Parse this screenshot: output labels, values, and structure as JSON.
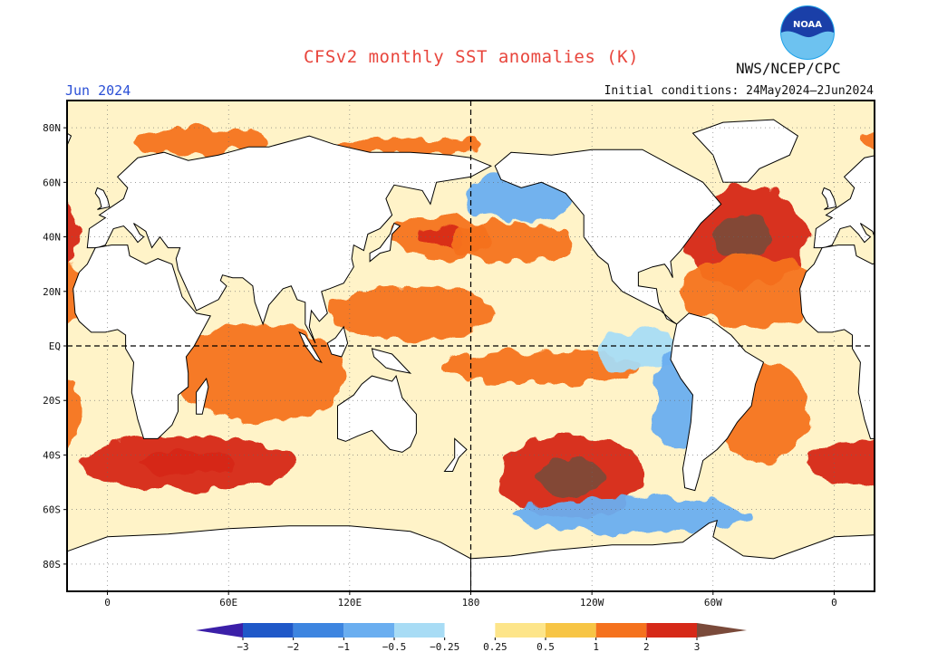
{
  "title": "CFSv2 monthly SST anomalies (K)",
  "organization": "NWS/NCEP/CPC",
  "logo_text": "NOAA",
  "forecast_month": "Jun 2024",
  "initial_conditions": "Initial conditions: 24May2024–2Jun2024",
  "map": {
    "projection": "equirectangular",
    "lon_range": [
      -20,
      380
    ],
    "lat_range": [
      -90,
      90
    ],
    "lat_ticks": [
      {
        "value": 80,
        "label": "80N"
      },
      {
        "value": 60,
        "label": "60N"
      },
      {
        "value": 40,
        "label": "40N"
      },
      {
        "value": 20,
        "label": "20N"
      },
      {
        "value": 0,
        "label": "EQ"
      },
      {
        "value": -20,
        "label": "20S"
      },
      {
        "value": -40,
        "label": "40S"
      },
      {
        "value": -60,
        "label": "60S"
      },
      {
        "value": -80,
        "label": "80S"
      }
    ],
    "lon_ticks": [
      {
        "value": 0,
        "label": "0"
      },
      {
        "value": 60,
        "label": "60E"
      },
      {
        "value": 120,
        "label": "120E"
      },
      {
        "value": 180,
        "label": "180"
      },
      {
        "value": 240,
        "label": "120W"
      },
      {
        "value": 300,
        "label": "60W"
      },
      {
        "value": 360,
        "label": "0"
      }
    ],
    "dashed_lines": [
      "Equator",
      "180 meridian"
    ]
  },
  "colorbar": {
    "levels": [
      -3,
      -2,
      -1,
      -0.5,
      -0.25,
      0.25,
      0.5,
      1,
      2,
      3
    ],
    "labels": [
      "−3",
      "−2",
      "−1",
      "−0.5",
      "−0.25",
      "0.25",
      "0.5",
      "1",
      "2",
      "3"
    ],
    "colors": {
      "below_min": "#3b1fa8",
      "bins": [
        "#1f58c8",
        "#3d85e0",
        "#6aaef0",
        "#a8dcf5",
        "#ffffff",
        "#fde58a",
        "#f7c545",
        "#f5721e",
        "#d62918",
        "#a00f10"
      ],
      "above_max": "#7a4a3a"
    }
  },
  "anomaly_regions": [
    {
      "name": "North Atlantic",
      "lon": 315,
      "lat": 40,
      "value": 2.2
    },
    {
      "name": "Subtropical North Atlantic",
      "lon": 320,
      "lat": 20,
      "value": 1.6
    },
    {
      "name": "Western North Pacific",
      "lon": 165,
      "lat": 40,
      "value": 1.8
    },
    {
      "name": "Central North Pacific",
      "lon": 200,
      "lat": 38,
      "value": 1.5
    },
    {
      "name": "Northeast Pacific",
      "lon": 205,
      "lat": 55,
      "value": -0.8
    },
    {
      "name": "Western Pacific warm pool",
      "lon": 150,
      "lat": 12,
      "value": 1.0
    },
    {
      "name": "Central Pacific band",
      "lon": 215,
      "lat": -8,
      "value": 1.0
    },
    {
      "name": "Eastern equatorial Pacific",
      "lon": 265,
      "lat": -2,
      "value": -0.4
    },
    {
      "name": "South American coast",
      "lon": 282,
      "lat": -20,
      "value": -0.6
    },
    {
      "name": "Indian Ocean",
      "lon": 75,
      "lat": -10,
      "value": 1.2
    },
    {
      "name": "Southern Indian Ocean",
      "lon": 40,
      "lat": -43,
      "value": 2.0
    },
    {
      "name": "South Pacific",
      "lon": 230,
      "lat": -48,
      "value": 2.3
    },
    {
      "name": "Southwest Atlantic",
      "lon": 325,
      "lat": -25,
      "value": 1.2
    },
    {
      "name": "Southern Ocean",
      "lon": 260,
      "lat": -62,
      "value": -0.7
    },
    {
      "name": "Barents Sea",
      "lon": 45,
      "lat": 75,
      "value": 1.4
    },
    {
      "name": "Arctic coast",
      "lon": 150,
      "lat": 73,
      "value": 1.5
    }
  ]
}
